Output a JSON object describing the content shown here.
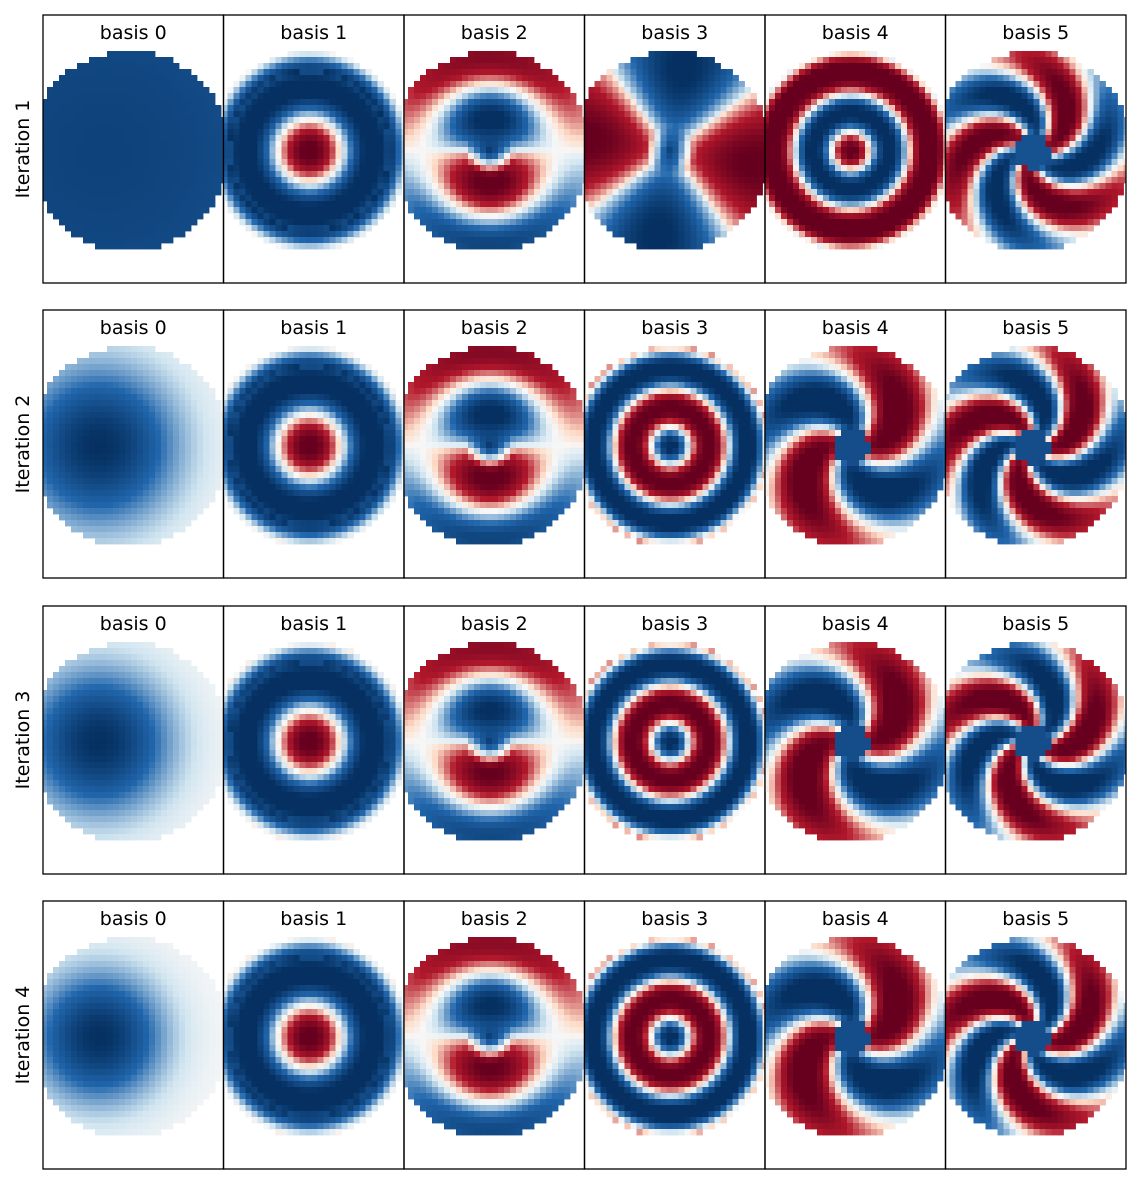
{
  "chart_data": {
    "type": "heatmap",
    "colormap": "RdBu_r",
    "grid": false,
    "colors": {
      "red_dark": "#67001f",
      "red": "#b2182b",
      "white": "#f7f7f7",
      "blue": "#2166ac",
      "blue_dark": "#053061",
      "frame": "#000000"
    },
    "rows": [
      {
        "label": "Iteration 1",
        "panels": [
          {
            "title": "basis 0",
            "pattern": "blob",
            "center": [
              -0.25,
              0.0
            ],
            "sigma": 1.6,
            "amp": -0.85,
            "bg": -0.55
          },
          {
            "title": "basis 1",
            "pattern": "ring",
            "m": 0,
            "k": 1,
            "amp": 0.95,
            "bg": -0.5
          },
          {
            "title": "basis 2",
            "pattern": "arc",
            "m": 1,
            "k": 1,
            "amp": 0.95,
            "phase": 1.57
          },
          {
            "title": "basis 3",
            "pattern": "arc",
            "m": 2,
            "k": 0,
            "amp": 0.9,
            "phase": 0.3
          },
          {
            "title": "basis 4",
            "pattern": "ring",
            "m": 0,
            "k": 2,
            "amp": 0.95,
            "bg": 0.7
          },
          {
            "title": "basis 5",
            "pattern": "swirl",
            "m": 3,
            "k": 1,
            "amp": 0.9,
            "phase": 0.0
          }
        ]
      },
      {
        "label": "Iteration 2",
        "panels": [
          {
            "title": "basis 0",
            "pattern": "blob",
            "center": [
              -0.3,
              0.0
            ],
            "sigma": 0.55,
            "amp": -1.0,
            "bg": 0.0
          },
          {
            "title": "basis 1",
            "pattern": "ring",
            "m": 0,
            "k": 1,
            "amp": 0.95,
            "bg": -0.45
          },
          {
            "title": "basis 2",
            "pattern": "arc",
            "m": 1,
            "k": 1,
            "amp": 0.95,
            "phase": 1.57
          },
          {
            "title": "basis 3",
            "pattern": "ring",
            "m": 0,
            "k": 2,
            "amp": -0.95,
            "bg": -0.2
          },
          {
            "title": "basis 4",
            "pattern": "swirl",
            "m": 2,
            "k": 1,
            "amp": 0.95,
            "phase": 0.6
          },
          {
            "title": "basis 5",
            "pattern": "swirl",
            "m": 3,
            "k": 1,
            "amp": 0.95,
            "phase": 1.2
          }
        ]
      },
      {
        "label": "Iteration 3",
        "panels": [
          {
            "title": "basis 0",
            "pattern": "blob",
            "center": [
              -0.3,
              0.0
            ],
            "sigma": 0.5,
            "amp": -1.0,
            "bg": 0.0
          },
          {
            "title": "basis 1",
            "pattern": "ring",
            "m": 0,
            "k": 1,
            "amp": 0.95,
            "bg": -0.4
          },
          {
            "title": "basis 2",
            "pattern": "arc",
            "m": 1,
            "k": 1,
            "amp": 0.9,
            "phase": 1.57
          },
          {
            "title": "basis 3",
            "pattern": "ring",
            "m": 0,
            "k": 2,
            "amp": -0.95,
            "bg": -0.2
          },
          {
            "title": "basis 4",
            "pattern": "swirl",
            "m": 2,
            "k": 1,
            "amp": 0.95,
            "phase": 0.6
          },
          {
            "title": "basis 5",
            "pattern": "swirl",
            "m": 3,
            "k": 1,
            "amp": 0.95,
            "phase": 2.2
          }
        ]
      },
      {
        "label": "Iteration 4",
        "panels": [
          {
            "title": "basis 0",
            "pattern": "blob",
            "center": [
              -0.3,
              0.0
            ],
            "sigma": 0.45,
            "amp": -1.0,
            "bg": 0.0
          },
          {
            "title": "basis 1",
            "pattern": "ring",
            "m": 0,
            "k": 1,
            "amp": 0.95,
            "bg": -0.4
          },
          {
            "title": "basis 2",
            "pattern": "arc",
            "m": 1,
            "k": 1,
            "amp": 0.9,
            "phase": 1.57
          },
          {
            "title": "basis 3",
            "pattern": "ring",
            "m": 0,
            "k": 2,
            "amp": -0.95,
            "bg": -0.25
          },
          {
            "title": "basis 4",
            "pattern": "swirl",
            "m": 2,
            "k": 1,
            "amp": 0.95,
            "phase": 0.6
          },
          {
            "title": "basis 5",
            "pattern": "swirl",
            "m": 3,
            "k": 1,
            "amp": 0.95,
            "phase": 1.8
          }
        ]
      }
    ]
  }
}
